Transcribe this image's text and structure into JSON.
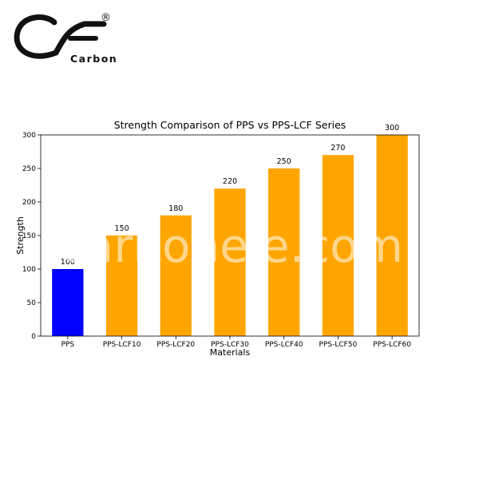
{
  "logo": {
    "mark_text": "CF",
    "registered_symbol": "®",
    "brand_text": "Carbon"
  },
  "watermark": {
    "text": "carbonele.com"
  },
  "colors": {
    "baseline_bar": "#0000ff",
    "series_bar": "#ffa500",
    "axis": "#000000",
    "logo": "#111111"
  },
  "chart_data": {
    "type": "bar",
    "title": "Strength Comparison of PPS vs PPS-LCF Series",
    "xlabel": "Materials",
    "ylabel": "Strength",
    "categories": [
      "PPS",
      "PPS-LCF10",
      "PPS-LCF20",
      "PPS-LCF30",
      "PPS-LCF40",
      "PPS-LCF50",
      "PPS-LCF60"
    ],
    "values": [
      100,
      150,
      180,
      220,
      250,
      270,
      300
    ],
    "data_labels": [
      "100",
      "150",
      "180",
      "220",
      "250",
      "270",
      "300"
    ],
    "bar_colors": [
      "#0000ff",
      "#ffa500",
      "#ffa500",
      "#ffa500",
      "#ffa500",
      "#ffa500",
      "#ffa500"
    ],
    "yticks": [
      0,
      50,
      100,
      150,
      200,
      250,
      300
    ],
    "ylim": [
      0,
      300
    ],
    "grid": false,
    "legend": "none"
  }
}
